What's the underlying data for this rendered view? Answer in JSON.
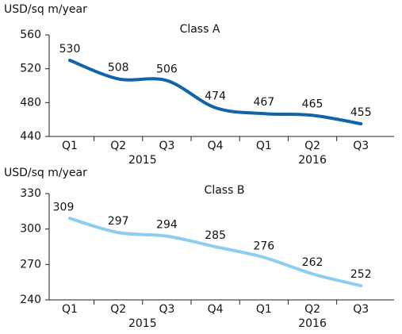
{
  "chart_data": [
    {
      "type": "line",
      "title": "Class A",
      "ylabel": "USD/sq m/year",
      "categories": [
        "Q1",
        "Q2",
        "Q3",
        "Q4",
        "Q1",
        "Q2",
        "Q3"
      ],
      "groups": [
        "2015",
        "2016"
      ],
      "series": [
        {
          "name": "Class A",
          "color": "#0f64aa",
          "values": [
            530,
            508,
            506,
            474,
            467,
            465,
            455
          ]
        }
      ],
      "ylim": [
        440,
        560
      ],
      "yticks": [
        440,
        480,
        520,
        560
      ]
    },
    {
      "type": "line",
      "title": "Class B",
      "ylabel": "USD/sq m/year",
      "categories": [
        "Q1",
        "Q2",
        "Q3",
        "Q4",
        "Q1",
        "Q2",
        "Q3"
      ],
      "groups": [
        "2015",
        "2016"
      ],
      "series": [
        {
          "name": "Class B",
          "color": "#8ecdf0",
          "values": [
            309,
            297,
            294,
            285,
            276,
            262,
            252
          ]
        }
      ],
      "ylim": [
        240,
        330
      ],
      "yticks": [
        240,
        270,
        300,
        330
      ]
    }
  ]
}
